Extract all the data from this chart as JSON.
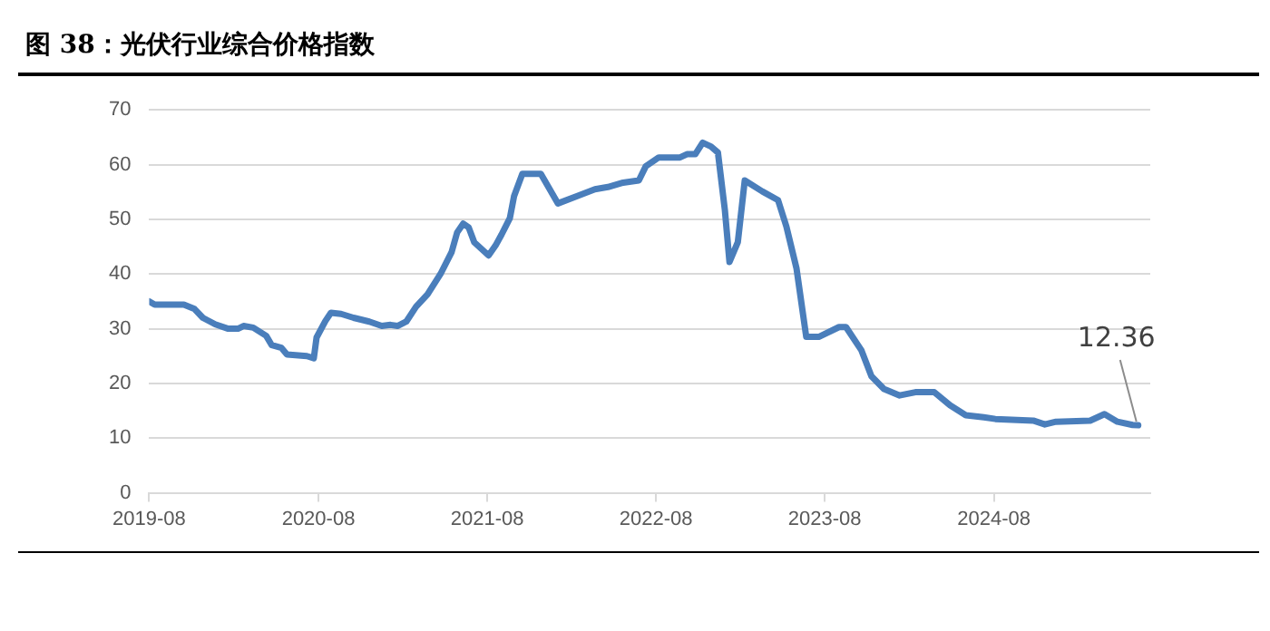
{
  "chart_data": {
    "type": "line",
    "title": "图 38：光伏行业综合价格指数",
    "x": [
      "2019-08-01",
      "2019-08-13",
      "2019-10-15",
      "2019-11-07",
      "2019-11-25",
      "2019-12-22",
      "2020-01-19",
      "2020-02-09",
      "2020-02-21",
      "2020-03-13",
      "2020-04-10",
      "2020-04-22",
      "2020-05-13",
      "2020-05-25",
      "2020-07-07",
      "2020-07-22",
      "2020-07-28",
      "2020-08-16",
      "2020-08-28",
      "2020-09-19",
      "2020-10-16",
      "2020-11-19",
      "2020-12-16",
      "2021-01-04",
      "2021-01-19",
      "2021-02-07",
      "2021-02-28",
      "2021-03-25",
      "2021-04-22",
      "2021-05-16",
      "2021-05-28",
      "2021-06-10",
      "2021-06-22",
      "2021-07-04",
      "2021-08-04",
      "2021-08-19",
      "2021-09-01",
      "2021-09-19",
      "2021-09-28",
      "2021-10-16",
      "2021-11-25",
      "2022-01-01",
      "2022-02-13",
      "2022-03-22",
      "2022-04-19",
      "2022-05-22",
      "2022-06-25",
      "2022-07-10",
      "2022-08-07",
      "2022-09-22",
      "2022-10-07",
      "2022-10-25",
      "2022-11-10",
      "2022-11-28",
      "2022-12-13",
      "2022-12-28",
      "2023-01-07",
      "2023-01-25",
      "2023-02-09",
      "2023-03-19",
      "2023-04-22",
      "2023-05-10",
      "2023-06-01",
      "2023-06-22",
      "2023-07-19",
      "2023-09-01",
      "2023-09-16",
      "2023-10-19",
      "2023-11-10",
      "2023-12-07",
      "2024-01-10",
      "2024-02-13",
      "2024-03-25",
      "2024-04-28",
      "2024-06-01",
      "2024-07-10",
      "2024-08-04",
      "2024-10-25",
      "2024-11-19",
      "2024-12-13",
      "2025-02-25",
      "2025-03-28",
      "2025-04-25",
      "2025-05-28",
      "2025-06-09"
    ],
    "series": [
      {
        "color": "#4a7ebb",
        "values": [
          35.0,
          34.4,
          34.4,
          33.6,
          32.0,
          30.8,
          30.0,
          30.0,
          30.5,
          30.2,
          28.7,
          27.0,
          26.5,
          25.3,
          25.0,
          24.6,
          28.4,
          31.4,
          32.9,
          32.7,
          32.0,
          31.3,
          30.5,
          30.7,
          30.5,
          31.3,
          34.0,
          36.3,
          40.0,
          44.0,
          47.6,
          49.2,
          48.5,
          45.8,
          43.4,
          45.2,
          47.2,
          50.2,
          54.2,
          58.3,
          58.3,
          52.9,
          54.3,
          55.5,
          55.9,
          56.7,
          57.1,
          59.7,
          61.3,
          61.3,
          61.9,
          61.9,
          64.0,
          63.3,
          62.2,
          51.7,
          42.2,
          45.8,
          57.1,
          55.1,
          53.5,
          48.7,
          41.0,
          28.5,
          28.5,
          30.3,
          30.3,
          26.1,
          21.3,
          19.0,
          17.8,
          18.4,
          18.4,
          16.0,
          14.2,
          13.8,
          13.5,
          13.2,
          12.5,
          13.0,
          13.2,
          14.4,
          13.0,
          12.4,
          12.36
        ]
      }
    ],
    "xlim": [
      "2019-08-01",
      "2025-07-05"
    ],
    "xticks": [
      "2019-08",
      "2020-08",
      "2021-08",
      "2022-08",
      "2023-08",
      "2024-08"
    ],
    "ylim": [
      0,
      70
    ],
    "yticks": [
      0,
      10,
      20,
      30,
      40,
      50,
      60,
      70
    ],
    "grid": "y",
    "marker": "none",
    "line_style": "solid",
    "annotations": [
      {
        "text": "12.36",
        "x": "2025-06-09",
        "y": 12.36
      }
    ]
  }
}
